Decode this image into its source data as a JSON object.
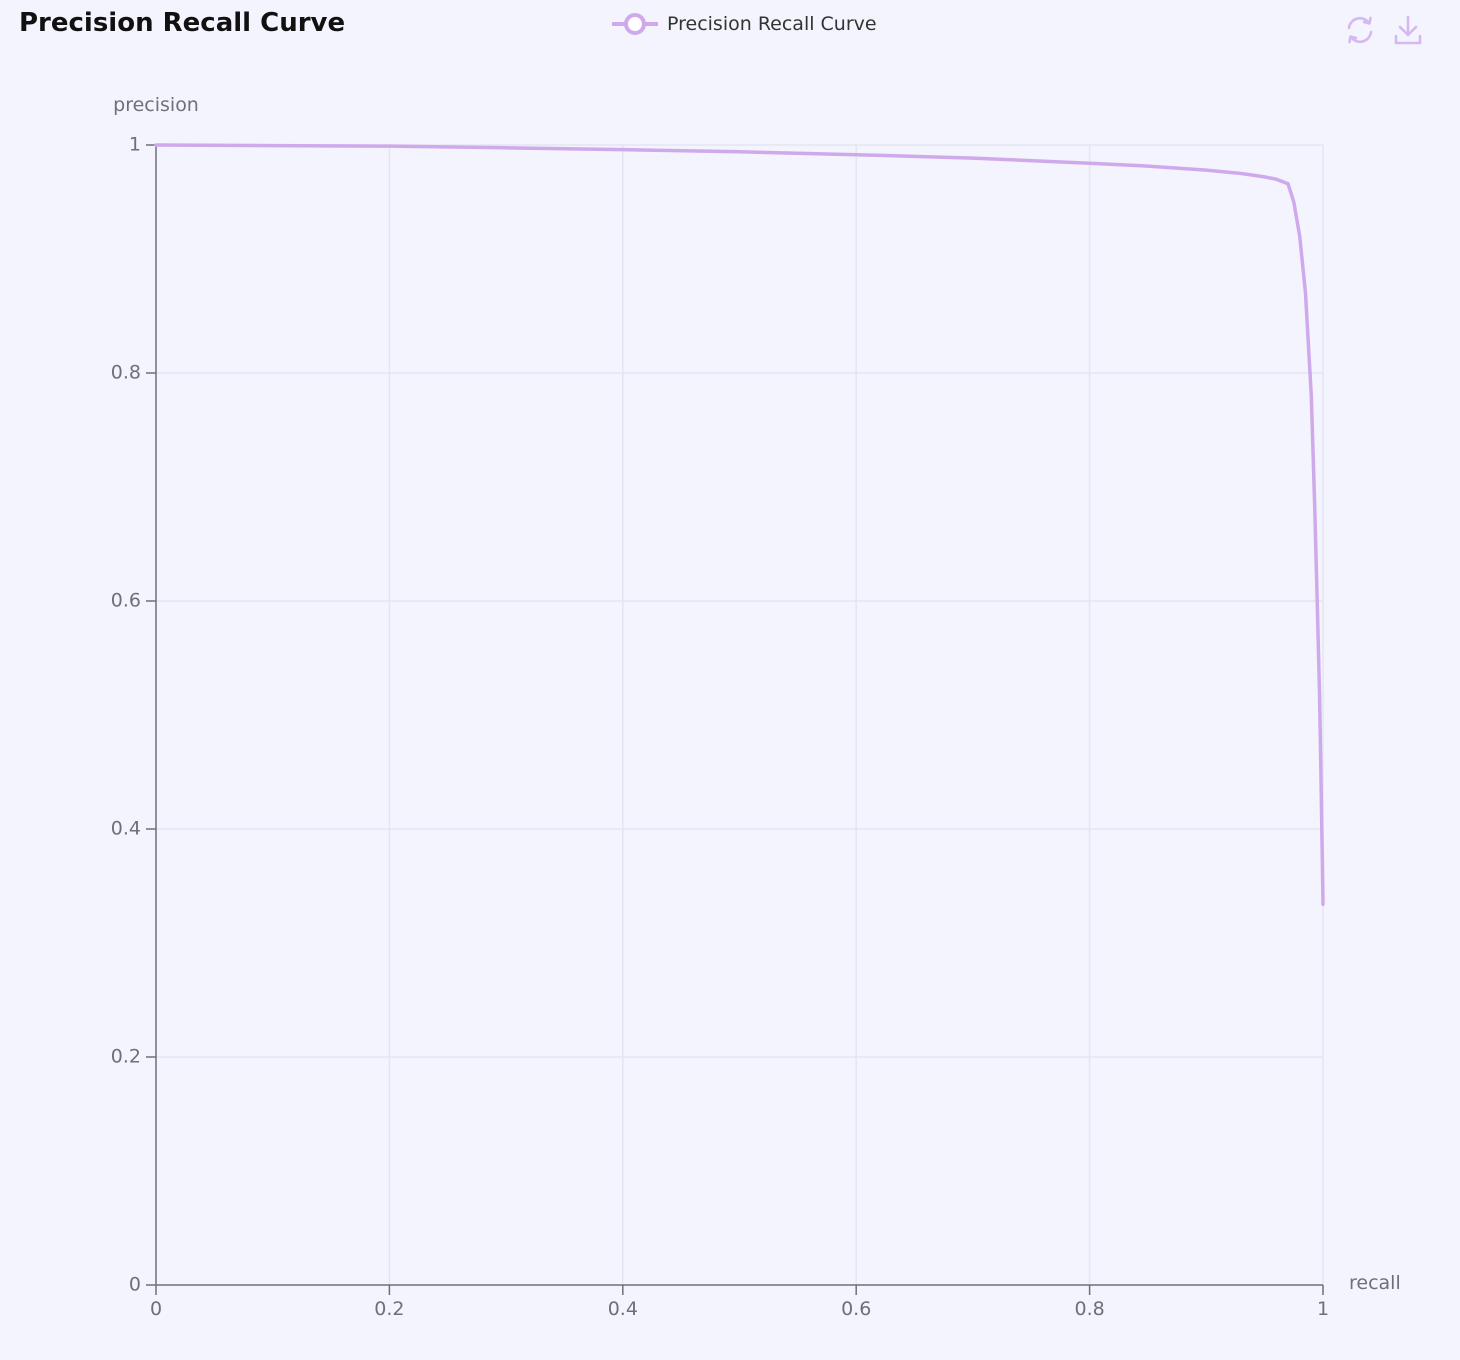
{
  "header": {
    "title": "Precision Recall Curve"
  },
  "legend": {
    "label": "Precision Recall Curve"
  },
  "toolbox": {
    "items": [
      {
        "name": "restore",
        "icon": "refresh-icon"
      },
      {
        "name": "save-as-image",
        "icon": "download-icon"
      }
    ]
  },
  "colors": {
    "series": "#cfa9ec",
    "grid": "#e3e5f2",
    "axis": "#6e7079",
    "icon": "#d6b8f0"
  },
  "chart_data": {
    "type": "line",
    "title": "Precision Recall Curve",
    "xlabel": "recall",
    "ylabel": "precision",
    "xlim": [
      0,
      1
    ],
    "ylim": [
      0,
      1
    ],
    "xticks": [
      "0",
      "0.2",
      "0.4",
      "0.6",
      "0.8",
      "1"
    ],
    "yticks": [
      "0",
      "0.2",
      "0.4",
      "0.6",
      "0.8",
      "1"
    ],
    "grid": true,
    "legend_position": "top-center",
    "series": [
      {
        "name": "Precision Recall Curve",
        "x": [
          0,
          0.1,
          0.2,
          0.3,
          0.4,
          0.5,
          0.6,
          0.7,
          0.8,
          0.85,
          0.9,
          0.93,
          0.95,
          0.96,
          0.965,
          0.97,
          0.975,
          0.98,
          0.985,
          0.99,
          0.993,
          0.995,
          0.997,
          0.998,
          0.999,
          0.9995,
          1.0
        ],
        "y": [
          1.0,
          0.9995,
          0.999,
          0.9975,
          0.996,
          0.994,
          0.9915,
          0.9885,
          0.984,
          0.9815,
          0.978,
          0.975,
          0.972,
          0.97,
          0.968,
          0.966,
          0.95,
          0.92,
          0.87,
          0.78,
          0.68,
          0.6,
          0.52,
          0.46,
          0.4,
          0.37,
          0.334
        ]
      }
    ]
  }
}
